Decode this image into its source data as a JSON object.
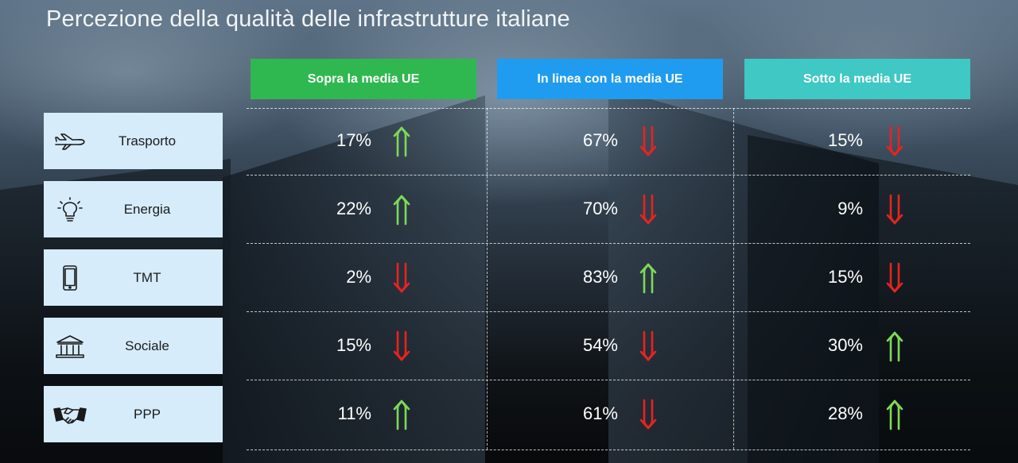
{
  "title": "Percezione della qualità delle infrastrutture italiane",
  "chart_data": {
    "type": "table",
    "columns": [
      {
        "label": "Sopra la media UE",
        "color": "#2fb84f"
      },
      {
        "label": "In linea con la media UE",
        "color": "#1f9cf0"
      },
      {
        "label": "Sotto la media UE",
        "color": "#3fc8c4"
      }
    ],
    "rows": [
      {
        "label": "Trasporto",
        "icon": "airplane-icon",
        "values": [
          "17%",
          "67%",
          "15%"
        ],
        "trend": [
          "up",
          "down",
          "down"
        ]
      },
      {
        "label": "Energia",
        "icon": "lightbulb-icon",
        "values": [
          "22%",
          "70%",
          "9%"
        ],
        "trend": [
          "up",
          "down",
          "down"
        ]
      },
      {
        "label": "TMT",
        "icon": "smartphone-icon",
        "values": [
          "2%",
          "83%",
          "15%"
        ],
        "trend": [
          "down",
          "up",
          "down"
        ]
      },
      {
        "label": "Sociale",
        "icon": "institution-icon",
        "values": [
          "15%",
          "54%",
          "30%"
        ],
        "trend": [
          "down",
          "down",
          "up"
        ]
      },
      {
        "label": "PPP",
        "icon": "handshake-icon",
        "values": [
          "11%",
          "61%",
          "28%"
        ],
        "trend": [
          "up",
          "down",
          "up"
        ]
      }
    ]
  },
  "colors": {
    "up": "#7ed957",
    "down": "#e8231f",
    "label_bg": "#d6ecfb"
  }
}
